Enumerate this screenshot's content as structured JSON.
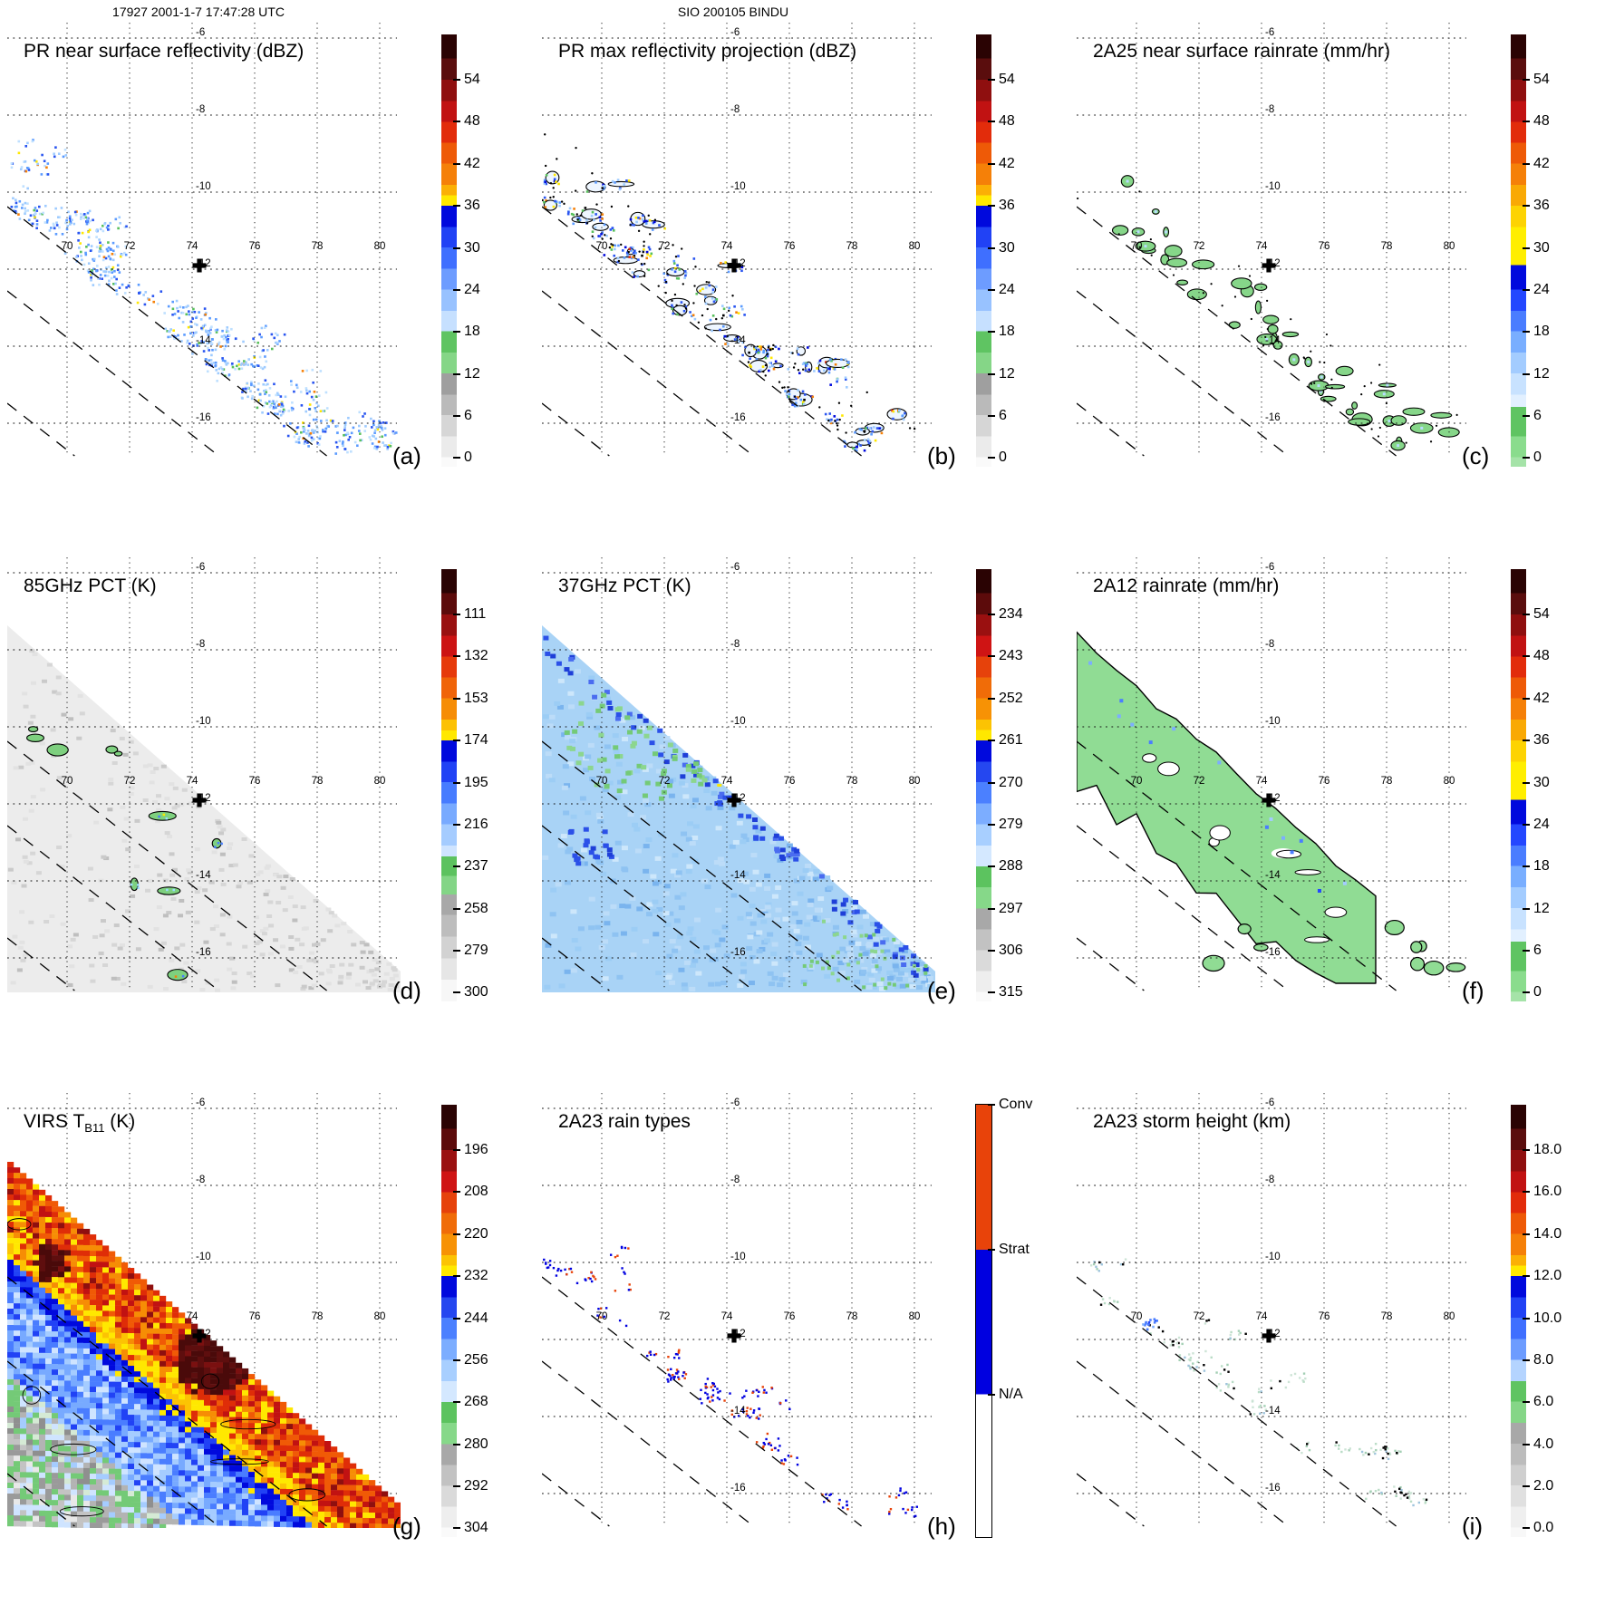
{
  "header": {
    "left": "17927 2001-1-7 17:47:28 UTC",
    "center": "SIO 200105 BINDU"
  },
  "axes": {
    "lon_labels": [
      "70",
      "72",
      "74",
      "76",
      "78",
      "80"
    ],
    "lat_labels": [
      "-6",
      "-8",
      "-10",
      "-12",
      "-14",
      "-16"
    ]
  },
  "panels": [
    {
      "id": "a",
      "letter": "(a)",
      "title_main": "PR near surface reflectivity (dBZ)",
      "title_sub": "",
      "title_tail": "",
      "cbar": "dbz",
      "field": "pr_sparse",
      "ticks": [
        "54",
        "48",
        "42",
        "36",
        "30",
        "24",
        "18",
        "12",
        "6",
        "0"
      ]
    },
    {
      "id": "b",
      "letter": "(b)",
      "title_main": "PR max reflectivity projection (dBZ)",
      "title_sub": "",
      "title_tail": "",
      "cbar": "dbz",
      "field": "pr_outline",
      "ticks": [
        "54",
        "48",
        "42",
        "36",
        "30",
        "24",
        "18",
        "12",
        "6",
        "0"
      ]
    },
    {
      "id": "c",
      "letter": "(c)",
      "title_main": "2A25 near surface rainrate (mm/hr)",
      "title_sub": "",
      "title_tail": "",
      "cbar": "rain",
      "field": "rain_sparse",
      "ticks": [
        "54",
        "48",
        "42",
        "36",
        "30",
        "24",
        "18",
        "12",
        "6",
        "0"
      ]
    },
    {
      "id": "d",
      "letter": "(d)",
      "title_main": "85GHz PCT (K)",
      "title_sub": "",
      "title_tail": "",
      "cbar": "pct85",
      "field": "pct85",
      "ticks": [
        "111",
        "132",
        "153",
        "174",
        "195",
        "216",
        "237",
        "258",
        "279",
        "300"
      ]
    },
    {
      "id": "e",
      "letter": "(e)",
      "title_main": "37GHz PCT (K)",
      "title_sub": "",
      "title_tail": "",
      "cbar": "pct37",
      "field": "pct37",
      "ticks": [
        "234",
        "243",
        "252",
        "261",
        "270",
        "279",
        "288",
        "297",
        "306",
        "315"
      ]
    },
    {
      "id": "f",
      "letter": "(f)",
      "title_main": "2A12 rainrate (mm/hr)",
      "title_sub": "",
      "title_tail": "",
      "cbar": "rain",
      "field": "tmi_rain",
      "ticks": [
        "54",
        "48",
        "42",
        "36",
        "30",
        "24",
        "18",
        "12",
        "6",
        "0"
      ]
    },
    {
      "id": "g",
      "letter": "(g)",
      "title_main": "VIRS T",
      "title_sub": "B11",
      "title_tail": " (K)",
      "cbar": "virs",
      "field": "virs",
      "ticks": [
        "196",
        "208",
        "220",
        "232",
        "244",
        "256",
        "268",
        "280",
        "292",
        "304"
      ]
    },
    {
      "id": "h",
      "letter": "(h)",
      "title_main": "2A23 rain types",
      "title_sub": "",
      "title_tail": "",
      "cbar": "raintype",
      "field": "raintype",
      "ticks": [
        "Conv",
        "Strat",
        "N/A"
      ]
    },
    {
      "id": "i",
      "letter": "(i)",
      "title_main": "2A23 storm height (km)",
      "title_sub": "",
      "title_tail": "",
      "cbar": "height",
      "field": "height",
      "ticks": [
        "18.0",
        "16.0",
        "14.0",
        "12.0",
        "10.0",
        "8.0",
        "6.0",
        "4.0",
        "2.0",
        "0.0"
      ]
    }
  ],
  "colorbars": {
    "dbz": [
      [
        0,
        "#2a0303"
      ],
      [
        0.056,
        "#5a0d0d"
      ],
      [
        0.105,
        "#8f0f0f"
      ],
      [
        0.154,
        "#c11212"
      ],
      [
        0.202,
        "#e22c0b"
      ],
      [
        0.251,
        "#ee5a07"
      ],
      [
        0.299,
        "#f58008"
      ],
      [
        0.348,
        "#fbb005"
      ],
      [
        0.372,
        "#ffe800"
      ],
      [
        0.396,
        "#0009dd"
      ],
      [
        0.445,
        "#2142f5"
      ],
      [
        0.493,
        "#3f6fff"
      ],
      [
        0.542,
        "#6d9cff"
      ],
      [
        0.59,
        "#98c2ff"
      ],
      [
        0.639,
        "#c6e0ff"
      ],
      [
        0.687,
        "#5fc462"
      ],
      [
        0.736,
        "#85d687"
      ],
      [
        0.784,
        "#9f9f9f"
      ],
      [
        0.833,
        "#bababa"
      ],
      [
        0.881,
        "#d6d6d6"
      ],
      [
        0.93,
        "#ebebeb"
      ],
      [
        0.978,
        "#fafafa"
      ]
    ],
    "rain": [
      [
        0,
        "#2a0303"
      ],
      [
        0.056,
        "#5a0d0d"
      ],
      [
        0.105,
        "#8f0f0f"
      ],
      [
        0.154,
        "#c11212"
      ],
      [
        0.202,
        "#e22c0b"
      ],
      [
        0.251,
        "#ee5a07"
      ],
      [
        0.299,
        "#f58008"
      ],
      [
        0.348,
        "#f9a904"
      ],
      [
        0.396,
        "#fdd302"
      ],
      [
        0.445,
        "#ffee00"
      ],
      [
        0.534,
        "#0009dd"
      ],
      [
        0.59,
        "#2447ff"
      ],
      [
        0.639,
        "#4a7dff"
      ],
      [
        0.687,
        "#79aeff"
      ],
      [
        0.736,
        "#a3ccff"
      ],
      [
        0.784,
        "#c8e2ff"
      ],
      [
        0.833,
        "#e2f0ff"
      ],
      [
        0.862,
        "#5fc462"
      ],
      [
        0.93,
        "#8adc8d"
      ],
      [
        0.978,
        "#a5e3a8"
      ]
    ],
    "pct85": [
      [
        0,
        "#2a0303"
      ],
      [
        0.056,
        "#5c0b0b"
      ],
      [
        0.105,
        "#991010"
      ],
      [
        0.154,
        "#cc1313"
      ],
      [
        0.202,
        "#e63a0b"
      ],
      [
        0.251,
        "#f06408"
      ],
      [
        0.299,
        "#f68d06"
      ],
      [
        0.348,
        "#fcc103"
      ],
      [
        0.373,
        "#ffe800"
      ],
      [
        0.396,
        "#0009dd"
      ],
      [
        0.445,
        "#2142f5"
      ],
      [
        0.493,
        "#477cff"
      ],
      [
        0.542,
        "#78aaff"
      ],
      [
        0.59,
        "#a5ccff"
      ],
      [
        0.639,
        "#cfe4ff"
      ],
      [
        0.665,
        "#5cc25f"
      ],
      [
        0.71,
        "#83d586"
      ],
      [
        0.753,
        "#a8a8a8"
      ],
      [
        0.8,
        "#bdbdbd"
      ],
      [
        0.85,
        "#d2d2d2"
      ],
      [
        0.9,
        "#e6e6e6"
      ],
      [
        0.95,
        "#f7f7f7"
      ]
    ],
    "pct37": [
      [
        0,
        "#2a0303"
      ],
      [
        0.056,
        "#5c0b0b"
      ],
      [
        0.105,
        "#9a1010"
      ],
      [
        0.154,
        "#cf1414"
      ],
      [
        0.202,
        "#e6420b"
      ],
      [
        0.251,
        "#f06c08"
      ],
      [
        0.299,
        "#f79205"
      ],
      [
        0.348,
        "#fcc303"
      ],
      [
        0.372,
        "#ffe800"
      ],
      [
        0.396,
        "#0009dd"
      ],
      [
        0.445,
        "#2547f0"
      ],
      [
        0.493,
        "#4b80ff"
      ],
      [
        0.542,
        "#7cadff"
      ],
      [
        0.59,
        "#a8cfff"
      ],
      [
        0.639,
        "#d4e8ff"
      ],
      [
        0.688,
        "#5cc35f"
      ],
      [
        0.736,
        "#86d889"
      ],
      [
        0.785,
        "#a8a8a8"
      ],
      [
        0.833,
        "#c2c2c2"
      ],
      [
        0.882,
        "#dadada"
      ],
      [
        0.93,
        "#eeeeee"
      ],
      [
        0.978,
        "#fafafa"
      ]
    ],
    "virs": [
      [
        0,
        "#2a0303"
      ],
      [
        0.056,
        "#5c0b0b"
      ],
      [
        0.105,
        "#9a1010"
      ],
      [
        0.154,
        "#cf1414"
      ],
      [
        0.202,
        "#e6420b"
      ],
      [
        0.251,
        "#f06c08"
      ],
      [
        0.299,
        "#f79205"
      ],
      [
        0.348,
        "#fcc303"
      ],
      [
        0.372,
        "#ffe800"
      ],
      [
        0.396,
        "#0009dd"
      ],
      [
        0.445,
        "#2547f0"
      ],
      [
        0.493,
        "#4b80ff"
      ],
      [
        0.542,
        "#7cadff"
      ],
      [
        0.59,
        "#a8cfff"
      ],
      [
        0.639,
        "#d4e8ff"
      ],
      [
        0.688,
        "#5cc35f"
      ],
      [
        0.736,
        "#86d889"
      ],
      [
        0.785,
        "#a8a8a8"
      ],
      [
        0.833,
        "#c2c2c2"
      ],
      [
        0.882,
        "#dadada"
      ],
      [
        0.93,
        "#eeeeee"
      ],
      [
        0.978,
        "#fafafa"
      ]
    ],
    "height": [
      [
        0,
        "#2a0303"
      ],
      [
        0.056,
        "#5a0d0d"
      ],
      [
        0.105,
        "#8f0f0f"
      ],
      [
        0.154,
        "#c11212"
      ],
      [
        0.202,
        "#e22c0b"
      ],
      [
        0.251,
        "#ee5a07"
      ],
      [
        0.299,
        "#f58008"
      ],
      [
        0.348,
        "#fbb005"
      ],
      [
        0.372,
        "#ffe800"
      ],
      [
        0.396,
        "#0009dd"
      ],
      [
        0.445,
        "#2142f5"
      ],
      [
        0.493,
        "#3f6fff"
      ],
      [
        0.542,
        "#6d9cff"
      ],
      [
        0.59,
        "#b4d4ff"
      ],
      [
        0.639,
        "#5fc462"
      ],
      [
        0.687,
        "#85d687"
      ],
      [
        0.736,
        "#a8a8a8"
      ],
      [
        0.784,
        "#bcbcbc"
      ],
      [
        0.833,
        "#cfcfcf"
      ],
      [
        0.881,
        "#e0e0e0"
      ],
      [
        0.93,
        "#efefef"
      ],
      [
        0.978,
        "#f8f8f8"
      ]
    ],
    "raintype": [
      [
        0,
        "#e8430a"
      ],
      [
        0.335,
        "#0000e0"
      ],
      [
        0.67,
        "#ffffff"
      ]
    ]
  },
  "chart_data": {
    "type": "heatmap",
    "title": "SIO 200105 BINDU",
    "subtitle": "17927 2001-1-7 17:47:28 UTC",
    "layout": "3x3 mapped satellite swath panels, each with vertical colorbar at right",
    "x_axis": {
      "ticks": [
        70,
        72,
        74,
        76,
        78,
        80
      ]
    },
    "y_axis": {
      "ticks": [
        -6,
        -8,
        -10,
        -12,
        -14,
        -16
      ]
    },
    "annotations": {
      "storm_center_marker": {
        "lon": 74.2,
        "lat": -12.0,
        "symbol": "black cross"
      }
    },
    "panels": [
      {
        "label": "(a)",
        "title": "PR near surface reflectivity (dBZ)",
        "colorbar_ticks": [
          54,
          48,
          42,
          36,
          30,
          24,
          18,
          12,
          6,
          0
        ]
      },
      {
        "label": "(b)",
        "title": "PR max reflectivity projection (dBZ)",
        "colorbar_ticks": [
          54,
          48,
          42,
          36,
          30,
          24,
          18,
          12,
          6,
          0
        ]
      },
      {
        "label": "(c)",
        "title": "2A25 near surface rainrate (mm/hr)",
        "colorbar_ticks": [
          54,
          48,
          42,
          36,
          30,
          24,
          18,
          12,
          6,
          0
        ]
      },
      {
        "label": "(d)",
        "title": "85GHz PCT (K)",
        "colorbar_ticks": [
          111,
          132,
          153,
          174,
          195,
          216,
          237,
          258,
          279,
          300
        ]
      },
      {
        "label": "(e)",
        "title": "37GHz PCT (K)",
        "colorbar_ticks": [
          234,
          243,
          252,
          261,
          270,
          279,
          288,
          297,
          306,
          315
        ]
      },
      {
        "label": "(f)",
        "title": "2A12 rainrate (mm/hr)",
        "colorbar_ticks": [
          54,
          48,
          42,
          36,
          30,
          24,
          18,
          12,
          6,
          0
        ]
      },
      {
        "label": "(g)",
        "title": "VIRS T_B11 (K)",
        "colorbar_ticks": [
          196,
          208,
          220,
          232,
          244,
          256,
          268,
          280,
          292,
          304
        ]
      },
      {
        "label": "(h)",
        "title": "2A23 rain types",
        "colorbar_ticks": [
          "Conv",
          "Strat",
          "N/A"
        ]
      },
      {
        "label": "(i)",
        "title": "2A23 storm height (km)",
        "colorbar_ticks": [
          18.0,
          16.0,
          14.0,
          12.0,
          10.0,
          8.0,
          6.0,
          4.0,
          2.0,
          0.0
        ]
      }
    ]
  }
}
